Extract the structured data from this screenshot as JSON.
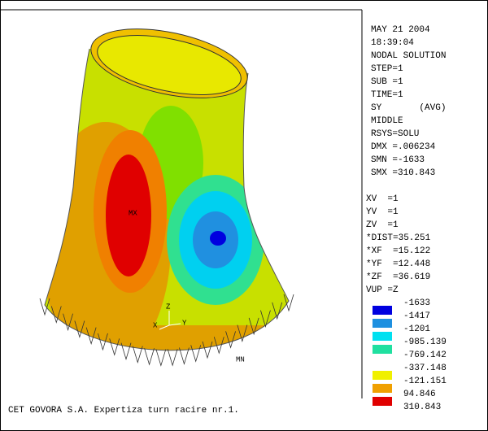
{
  "info": [
    "MAY 21 2004",
    "18:39:04",
    "NODAL SOLUTION",
    "STEP=1",
    "SUB =1",
    "TIME=1",
    "SY       (AVG)",
    "MIDDLE",
    "RSYS=SOLU",
    "DMX =.006234",
    "SMN =-1633",
    "SMX =310.843"
  ],
  "view": [
    "XV  =1",
    "YV  =1",
    "ZV  =1",
    "*DIST=35.251",
    "*XF  =15.122",
    "*YF  =12.448",
    "*ZF  =36.619",
    "VUP =Z"
  ],
  "legend": {
    "labels": [
      "-1633",
      "-1417",
      "-1201",
      "-985.139",
      "-769.142",
      "-337.148",
      "-121.151",
      "94.846",
      "310.843"
    ],
    "colors": [
      "#0000e0",
      "#1e90e0",
      "#00e0f0",
      "#20e0a0",
      null,
      "#f0f000",
      "#f0a000",
      "#e00000"
    ]
  },
  "plot": {
    "max_label": "MX",
    "min_label": "MN",
    "axes": [
      "X",
      "Y",
      "Z"
    ]
  },
  "footer": "CET GOVORA S.A. Expertiza turn racire nr.1."
}
